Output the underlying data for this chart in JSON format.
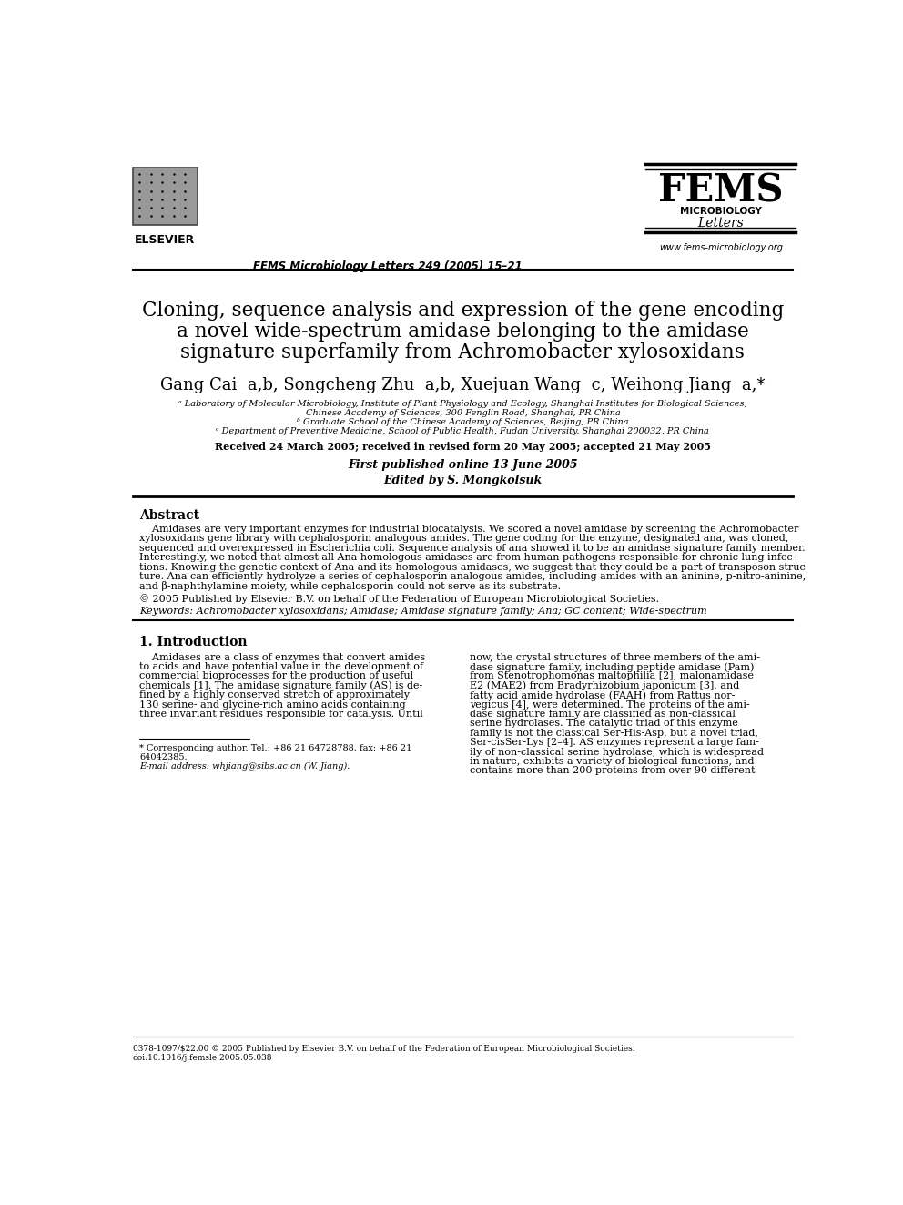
{
  "bg_color": "#ffffff",
  "text_color": "#000000",
  "header_journal": "FEMS Microbiology Letters 249 (2005) 15–21",
  "fems_title": "FEMS",
  "fems_subtitle1": "MICROBIOLOGY",
  "fems_subtitle2": "Letters",
  "fems_url": "www.fems-microbiology.org",
  "article_title_line1": "Cloning, sequence analysis and expression of the gene encoding",
  "article_title_line2": "a novel wide-spectrum amidase belonging to the amidase",
  "article_title_line3": "signature superfamily from ",
  "article_title_line3_italic": "Achromobacter xylosoxidans",
  "affil_a": "ᵃ Laboratory of Molecular Microbiology, Institute of Plant Physiology and Ecology, Shanghai Institutes for Biological Sciences,",
  "affil_a2": "Chinese Academy of Sciences, 300 Fenglin Road, Shanghai, PR China",
  "affil_b": "ᵇ Graduate School of the Chinese Academy of Sciences, Beijing, PR China",
  "affil_c": "ᶜ Department of Preventive Medicine, School of Public Health, Fudan University, Shanghai 200032, PR China",
  "received": "Received 24 March 2005; received in revised form 20 May 2005; accepted 21 May 2005",
  "published_online": "First published online 13 June 2005",
  "edited_by": "Edited by S. Mongkolsuk",
  "abstract_title": "Abstract",
  "copyright": "© 2005 Published by Elsevier B.V. on behalf of the Federation of European Microbiological Societies.",
  "keywords": "Keywords: Achromobacter xylosoxidans; Amidase; Amidase signature family; Ana; GC content; Wide-spectrum",
  "intro_title": "1. Introduction",
  "footnote_star": "* Corresponding author. Tel.: +86 21 64728788. fax: +86 21",
  "footnote_star2": "64042385.",
  "footnote_email": "E-mail address: whjiang@sibs.ac.cn (W. Jiang).",
  "bottom_line1": "0378-1097/$22.00 © 2005 Published by Elsevier B.V. on behalf of the Federation of European Microbiological Societies.",
  "bottom_line2": "doi:10.1016/j.femsle.2005.05.038"
}
